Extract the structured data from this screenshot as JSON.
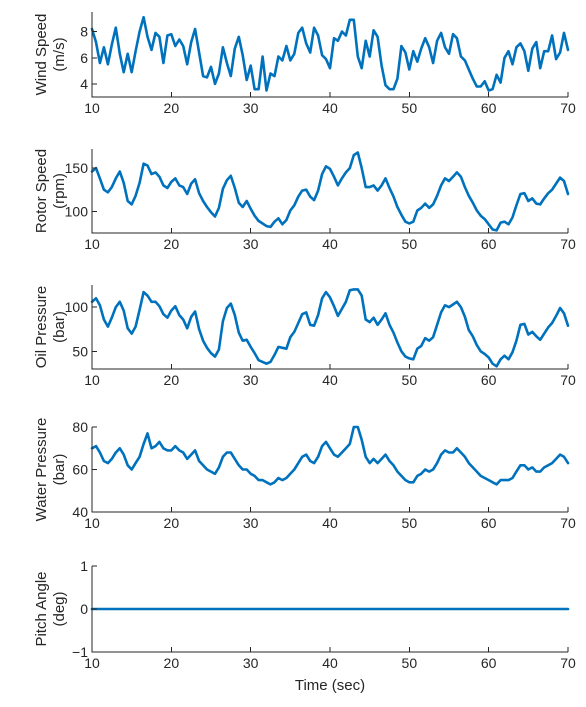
{
  "chart_data": [
    {
      "type": "line",
      "ylabel": [
        "Wind Speed",
        "(m/s)"
      ],
      "xlabel": "",
      "xlim": [
        10,
        70
      ],
      "ylim": [
        3,
        9.5
      ],
      "xticks": [
        10,
        20,
        30,
        40,
        50,
        60,
        70
      ],
      "yticks": [
        4,
        6,
        8
      ],
      "color": "#0072BD",
      "series": [
        {
          "x": [
            10,
            10.5,
            11,
            11.5,
            12,
            12.5,
            13,
            13.5,
            14,
            14.5,
            15,
            15.5,
            16,
            16.5,
            17,
            17.5,
            18,
            18.5,
            19,
            19.5,
            20,
            20.5,
            21,
            21.5,
            22,
            22.5,
            23,
            23.5,
            24,
            24.5,
            25,
            25.5,
            26,
            26.5,
            27,
            27.5,
            28,
            28.5,
            29,
            29.5,
            30,
            30.5,
            31,
            31.5,
            32,
            32.5,
            33,
            33.5,
            34,
            34.5,
            35,
            35.5,
            36,
            36.5,
            37,
            37.5,
            38,
            38.5,
            39,
            39.5,
            40,
            40.5,
            41,
            41.5,
            42,
            42.5,
            43,
            43.5,
            44,
            44.5,
            45,
            45.5,
            46,
            46.5,
            47,
            47.5,
            48,
            48.5,
            49,
            49.5,
            50,
            50.5,
            51,
            51.5,
            52,
            52.5,
            53,
            53.5,
            54,
            54.5,
            55,
            55.5,
            56,
            56.5,
            57,
            57.5,
            58,
            58.5,
            59,
            59.5,
            60,
            60.5,
            61,
            61.5,
            62,
            62.5,
            63,
            63.5,
            64,
            64.5,
            65,
            65.5,
            66,
            66.5,
            67,
            67.5,
            68,
            68.5,
            69,
            69.5,
            70
          ],
          "y": [
            8.2,
            7.2,
            5.6,
            6.8,
            5.5,
            7,
            8.3,
            6.3,
            4.9,
            6.3,
            4.9,
            6.5,
            8,
            9.1,
            7.6,
            6.6,
            7.9,
            7.6,
            5.6,
            7.7,
            7.8,
            6.9,
            7.4,
            6.9,
            5.5,
            7.2,
            8.2,
            6.4,
            4.6,
            4.5,
            5.3,
            4,
            4.8,
            6.8,
            5.6,
            4.6,
            6.7,
            7.6,
            6.2,
            4.3,
            5.4,
            3.6,
            3.6,
            6.1,
            3.5,
            4.8,
            4.6,
            6.1,
            5.8,
            6.9,
            5.8,
            6.3,
            7.9,
            8.3,
            7.1,
            6.4,
            8.3,
            7.7,
            6.2,
            5.9,
            5.2,
            7.5,
            7.3,
            8,
            7.7,
            8.9,
            8.9,
            6.1,
            5.2,
            7.3,
            6.1,
            8.1,
            7.6,
            5.4,
            3.9,
            3.6,
            3.6,
            4.4,
            6.9,
            6.4,
            5.1,
            6.5,
            5.7,
            6.7,
            7.5,
            6.8,
            5.6,
            7.3,
            7.9,
            6.8,
            6.3,
            7.8,
            7.5,
            6.1,
            5.8,
            5.1,
            4.4,
            3.8,
            3.8,
            4.2,
            3.5,
            3.6,
            4.7,
            4.1,
            6,
            6.5,
            5.5,
            6.8,
            7.1,
            6.5,
            5,
            6.7,
            7.2,
            5.2,
            6.5,
            6.5,
            7.7,
            5.9,
            6.4,
            7.9,
            6.6
          ]
        }
      ]
    },
    {
      "type": "line",
      "ylabel": [
        "Rotor Speed",
        "(rpm)"
      ],
      "xlabel": "",
      "xlim": [
        10,
        70
      ],
      "ylim": [
        75,
        172
      ],
      "xticks": [
        10,
        20,
        30,
        40,
        50,
        60,
        70
      ],
      "yticks": [
        100,
        150
      ],
      "color": "#0072BD",
      "series": [
        {
          "x": [
            10,
            10.5,
            11,
            11.5,
            12,
            12.5,
            13,
            13.5,
            14,
            14.5,
            15,
            15.5,
            16,
            16.5,
            17,
            17.5,
            18,
            18.5,
            19,
            19.5,
            20,
            20.5,
            21,
            21.5,
            22,
            22.5,
            23,
            23.5,
            24,
            24.5,
            25,
            25.5,
            26,
            26.5,
            27,
            27.5,
            28,
            28.5,
            29,
            29.5,
            30,
            30.5,
            31,
            31.5,
            32,
            32.5,
            33,
            33.5,
            34,
            34.5,
            35,
            35.5,
            36,
            36.5,
            37,
            37.5,
            38,
            38.5,
            39,
            39.5,
            40,
            40.5,
            41,
            41.5,
            42,
            42.5,
            43,
            43.5,
            44,
            44.5,
            45,
            45.5,
            46,
            46.5,
            47,
            47.5,
            48,
            48.5,
            49,
            49.5,
            50,
            50.5,
            51,
            51.5,
            52,
            52.5,
            53,
            53.5,
            54,
            54.5,
            55,
            55.5,
            56,
            56.5,
            57,
            57.5,
            58,
            58.5,
            59,
            59.5,
            60,
            60.5,
            61,
            61.5,
            62,
            62.5,
            63,
            63.5,
            64,
            64.5,
            65,
            65.5,
            66,
            66.5,
            67,
            67.5,
            68,
            68.5,
            69,
            69.5,
            70
          ],
          "y": [
            146,
            150,
            138,
            125,
            122,
            128,
            138,
            146,
            133,
            112,
            108,
            118,
            133,
            155,
            153,
            143,
            145,
            140,
            130,
            127,
            134,
            138,
            130,
            128,
            120,
            132,
            137,
            121,
            112,
            105,
            99,
            94,
            104,
            126,
            136,
            141,
            127,
            110,
            105,
            112,
            103,
            95,
            89,
            86,
            83,
            82,
            88,
            92,
            85,
            90,
            101,
            107,
            117,
            124,
            125,
            117,
            113,
            124,
            143,
            152,
            149,
            140,
            130,
            138,
            145,
            150,
            165,
            168,
            150,
            128,
            128,
            130,
            124,
            130,
            138,
            127,
            117,
            105,
            96,
            88,
            86,
            88,
            101,
            104,
            109,
            104,
            108,
            118,
            130,
            138,
            135,
            140,
            145,
            140,
            128,
            118,
            110,
            101,
            95,
            91,
            85,
            79,
            78,
            87,
            88,
            85,
            93,
            107,
            120,
            121,
            112,
            115,
            109,
            108,
            115,
            121,
            125,
            132,
            139,
            135,
            120
          ]
        }
      ]
    },
    {
      "type": "line",
      "ylabel": [
        "Oil Pressure",
        "(bar)"
      ],
      "xlabel": "",
      "xlim": [
        10,
        70
      ],
      "ylim": [
        30,
        125
      ],
      "xticks": [
        10,
        20,
        30,
        40,
        50,
        60,
        70
      ],
      "yticks": [
        50,
        100
      ],
      "color": "#0072BD",
      "series": [
        {
          "x": [
            10,
            10.5,
            11,
            11.5,
            12,
            12.5,
            13,
            13.5,
            14,
            14.5,
            15,
            15.5,
            16,
            16.5,
            17,
            17.5,
            18,
            18.5,
            19,
            19.5,
            20,
            20.5,
            21,
            21.5,
            22,
            22.5,
            23,
            23.5,
            24,
            24.5,
            25,
            25.5,
            26,
            26.5,
            27,
            27.5,
            28,
            28.5,
            29,
            29.5,
            30,
            30.5,
            31,
            31.5,
            32,
            32.5,
            33,
            33.5,
            34,
            34.5,
            35,
            35.5,
            36,
            36.5,
            37,
            37.5,
            38,
            38.5,
            39,
            39.5,
            40,
            40.5,
            41,
            41.5,
            42,
            42.5,
            43,
            43.5,
            44,
            44.5,
            45,
            45.5,
            46,
            46.5,
            47,
            47.5,
            48,
            48.5,
            49,
            49.5,
            50,
            50.5,
            51,
            51.5,
            52,
            52.5,
            53,
            53.5,
            54,
            54.5,
            55,
            55.5,
            56,
            56.5,
            57,
            57.5,
            58,
            58.5,
            59,
            59.5,
            60,
            60.5,
            61,
            61.5,
            62,
            62.5,
            63,
            63.5,
            64,
            64.5,
            65,
            65.5,
            66,
            66.5,
            67,
            67.5,
            68,
            68.5,
            69,
            69.5,
            70
          ],
          "y": [
            106,
            110,
            102,
            86,
            78,
            88,
            100,
            106,
            96,
            76,
            70,
            78,
            97,
            117,
            113,
            106,
            106,
            101,
            92,
            88,
            96,
            101,
            91,
            86,
            76,
            89,
            95,
            75,
            62,
            54,
            48,
            44,
            52,
            84,
            99,
            104,
            91,
            71,
            62,
            63,
            55,
            48,
            40,
            38,
            36,
            38,
            46,
            55,
            54,
            53,
            66,
            72,
            82,
            92,
            94,
            80,
            79,
            91,
            110,
            117,
            111,
            101,
            90,
            98,
            106,
            119,
            120,
            120,
            113,
            86,
            83,
            88,
            80,
            86,
            93,
            80,
            71,
            60,
            50,
            44,
            42,
            41,
            53,
            56,
            65,
            62,
            66,
            80,
            94,
            102,
            100,
            103,
            106,
            100,
            89,
            74,
            67,
            57,
            50,
            47,
            43,
            36,
            33,
            41,
            45,
            41,
            49,
            62,
            80,
            81,
            69,
            72,
            67,
            63,
            70,
            77,
            82,
            90,
            99,
            93,
            79
          ]
        }
      ]
    },
    {
      "type": "line",
      "ylabel": [
        "Water Pressure",
        "(bar)"
      ],
      "xlabel": "",
      "xlim": [
        10,
        70
      ],
      "ylim": [
        40,
        80
      ],
      "xticks": [
        10,
        20,
        30,
        40,
        50,
        60,
        70
      ],
      "yticks": [
        40,
        60,
        80
      ],
      "color": "#0072BD",
      "series": [
        {
          "x": [
            10,
            10.5,
            11,
            11.5,
            12,
            12.5,
            13,
            13.5,
            14,
            14.5,
            15,
            15.5,
            16,
            16.5,
            17,
            17.5,
            18,
            18.5,
            19,
            19.5,
            20,
            20.5,
            21,
            21.5,
            22,
            22.5,
            23,
            23.5,
            24,
            24.5,
            25,
            25.5,
            26,
            26.5,
            27,
            27.5,
            28,
            28.5,
            29,
            29.5,
            30,
            30.5,
            31,
            31.5,
            32,
            32.5,
            33,
            33.5,
            34,
            34.5,
            35,
            35.5,
            36,
            36.5,
            37,
            37.5,
            38,
            38.5,
            39,
            39.5,
            40,
            40.5,
            41,
            41.5,
            42,
            42.5,
            43,
            43.5,
            44,
            44.5,
            45,
            45.5,
            46,
            46.5,
            47,
            47.5,
            48,
            48.5,
            49,
            49.5,
            50,
            50.5,
            51,
            51.5,
            52,
            52.5,
            53,
            53.5,
            54,
            54.5,
            55,
            55.5,
            56,
            56.5,
            57,
            57.5,
            58,
            58.5,
            59,
            59.5,
            60,
            60.5,
            61,
            61.5,
            62,
            62.5,
            63,
            63.5,
            64,
            64.5,
            65,
            65.5,
            66,
            66.5,
            67,
            67.5,
            68,
            68.5,
            69,
            69.5,
            70
          ],
          "y": [
            70,
            71,
            68,
            64,
            63,
            65,
            68,
            70,
            67,
            62,
            60,
            63,
            66,
            72,
            77,
            70,
            71,
            73,
            70,
            69,
            69,
            71,
            69,
            68,
            65,
            67,
            69,
            64,
            62,
            60,
            59,
            58,
            61,
            66,
            68,
            68,
            65,
            62,
            60,
            60,
            58,
            57,
            55,
            55,
            54,
            53,
            54,
            56,
            55,
            56,
            58,
            60,
            63,
            66,
            67,
            64,
            63,
            66,
            71,
            73,
            70,
            67,
            66,
            68,
            70,
            72,
            80,
            80,
            74,
            66,
            63,
            65,
            63,
            65,
            67,
            64,
            62,
            59,
            57,
            55,
            54,
            54,
            57,
            58,
            60,
            59,
            60,
            63,
            67,
            69,
            68,
            68,
            70,
            68,
            66,
            63,
            61,
            59,
            57,
            56,
            55,
            54,
            53,
            55,
            55,
            55,
            56,
            59,
            62,
            62,
            60,
            61,
            59,
            59,
            61,
            62,
            63,
            65,
            67,
            66,
            63
          ]
        }
      ]
    },
    {
      "type": "line",
      "ylabel": [
        "Pitch Angle",
        "(deg)"
      ],
      "xlabel": "Time (sec)",
      "xlim": [
        10,
        70
      ],
      "ylim": [
        -1,
        1
      ],
      "xticks": [
        10,
        20,
        30,
        40,
        50,
        60,
        70
      ],
      "yticks": [
        -1,
        0,
        1
      ],
      "color": "#0072BD",
      "series": [
        {
          "x": [
            10,
            70
          ],
          "y": [
            0,
            0
          ]
        }
      ]
    }
  ]
}
